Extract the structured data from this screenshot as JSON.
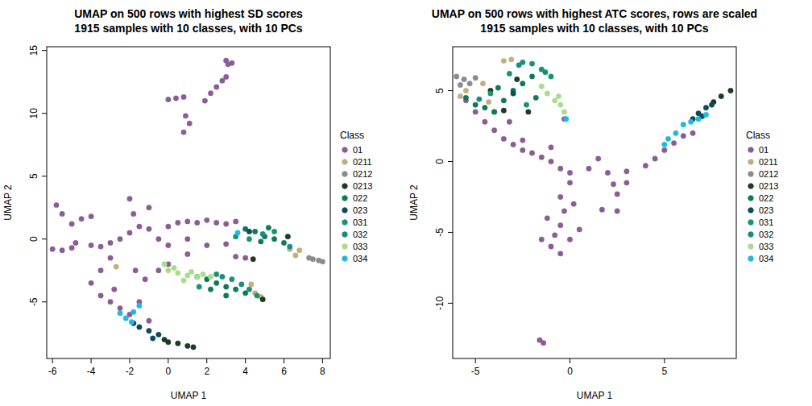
{
  "chart_data": [
    {
      "type": "scatter",
      "title": "UMAP on 500 rows with highest SD scores",
      "subtitle": "1915 samples with 10 classes, with 10 PCs",
      "x_label": "UMAP 1",
      "y_label": "UMAP 2",
      "legend_title": "Class",
      "legend": "right",
      "xlim": [
        -6.3,
        8.4
      ],
      "ylim": [
        -9.5,
        15.3
      ],
      "xticks": [
        -6,
        -4,
        -2,
        0,
        2,
        4,
        6,
        8
      ],
      "yticks": [
        -5,
        0,
        5,
        10,
        15
      ],
      "series": [
        {
          "name": "01",
          "color": "#8b5c97",
          "x": [
            3.0,
            3.3,
            3.1,
            1.9,
            2.2,
            2.5,
            2.8,
            3.0,
            0.0,
            0.4,
            0.8,
            0.8,
            1.1,
            0.9,
            -6.5,
            -6.0,
            -5.5,
            -5.0,
            -5.8,
            -5.5,
            -5.0,
            -4.5,
            -4.0,
            -4.8,
            -4.0,
            -3.5,
            -3.0,
            -2.5,
            -2.0,
            -1.5,
            -1.0,
            -0.5,
            0.0,
            0.5,
            1.0,
            1.5,
            2.0,
            2.5,
            3.0,
            3.5,
            -2.0,
            -1.8,
            -1.0,
            0.0,
            1.0,
            2.0,
            3.0,
            3.5,
            4.0,
            1.0,
            0.0,
            -0.5,
            -3.0,
            -3.5,
            -4.0,
            -3.5,
            -3.0,
            -2.5,
            -2.0,
            -1.5,
            -1.0,
            -2.8,
            -1.7,
            -1.2
          ],
          "values": [
            14.2,
            14.0,
            13.9,
            11.0,
            11.6,
            12.1,
            12.6,
            12.9,
            11.1,
            11.2,
            11.3,
            8.5,
            9.2,
            9.8,
            -0.8,
            -0.8,
            -0.9,
            -0.7,
            2.7,
            2.0,
            1.2,
            1.6,
            1.8,
            -0.3,
            -0.5,
            -0.6,
            -0.3,
            0.0,
            0.5,
            1.0,
            0.8,
            0.0,
            1.0,
            1.3,
            1.4,
            1.3,
            1.5,
            1.3,
            1.2,
            1.4,
            3.2,
            2.0,
            2.5,
            -0.5,
            0.0,
            -0.5,
            -0.4,
            -1.4,
            -1.5,
            -1.2,
            -2.0,
            -2.5,
            -1.5,
            -2.5,
            -3.5,
            -4.5,
            -5.0,
            -5.5,
            -6.0,
            -5.0,
            -6.5,
            -4.0,
            -2.5,
            -3.2
          ]
        },
        {
          "name": "0211",
          "color": "#c2ae7e",
          "x": [
            6.3,
            6.8,
            6.6,
            4.5,
            4.8,
            4.3,
            -2.7
          ],
          "values": [
            -0.8,
            -0.9,
            -1.3,
            -4.3,
            -4.6,
            -3.6,
            -2.2
          ]
        },
        {
          "name": "0212",
          "color": "#8c8c8c",
          "x": [
            7.3,
            7.5,
            7.8,
            8.0
          ],
          "values": [
            -1.5,
            -1.6,
            -1.7,
            -1.8
          ]
        },
        {
          "name": "0213",
          "color": "#1f3a28",
          "x": [
            -0.2,
            0.0,
            0.5,
            1.0,
            1.3,
            4.9,
            4.4,
            6.2
          ],
          "values": [
            -8.0,
            -8.2,
            -8.3,
            -8.5,
            -8.6,
            -4.8,
            -1.6,
            0.2
          ]
        },
        {
          "name": "022",
          "color": "#0e7a58",
          "x": [
            4.0,
            4.5,
            5.0,
            5.5,
            6.0,
            5.2,
            4.8,
            1.5,
            2.0,
            2.5,
            3.0,
            3.5,
            4.0,
            2.2,
            3.0
          ],
          "values": [
            0.8,
            0.6,
            0.2,
            0.0,
            -0.3,
            0.9,
            -0.2,
            -3.0,
            -3.2,
            -3.5,
            -3.8,
            -4.0,
            -4.3,
            -4.0,
            -4.5
          ]
        },
        {
          "name": "023",
          "color": "#0d4a5e",
          "x": [
            -1.8,
            -1.5,
            -1.0,
            -0.5,
            -0.8,
            4.2
          ],
          "values": [
            -6.7,
            -7.0,
            -7.3,
            -7.6,
            -7.9,
            0.6
          ]
        },
        {
          "name": "031",
          "color": "#179470",
          "x": [
            3.5,
            4.2,
            5.5,
            2.5,
            3.3,
            4.2,
            1.6,
            4.6
          ],
          "values": [
            0.2,
            0.0,
            0.6,
            -2.8,
            -3.2,
            -4.0,
            -3.8,
            -4.5
          ]
        },
        {
          "name": "032",
          "color": "#1a8c7c",
          "x": [
            2.8,
            3.8,
            4.9,
            6.3
          ],
          "values": [
            -3.0,
            -3.6,
            0.4,
            -0.6
          ]
        },
        {
          "name": "033",
          "color": "#a9dc8c",
          "x": [
            -0.2,
            0.0,
            0.3,
            0.5,
            0.8,
            1.0,
            1.2,
            1.5,
            1.8,
            2.2
          ],
          "values": [
            -2.0,
            -2.5,
            -2.3,
            -2.7,
            -3.3,
            -2.9,
            -2.6,
            -3.0,
            -2.8,
            -3.0
          ]
        },
        {
          "name": "034",
          "color": "#22b8e2",
          "x": [
            -2.5,
            -2.2,
            -1.9,
            -1.8,
            -1.5,
            3.6
          ],
          "values": [
            -5.9,
            -6.3,
            -6.6,
            -5.8,
            -5.3,
            0.5
          ]
        }
      ]
    },
    {
      "type": "scatter",
      "title": "UMAP on 500 rows with highest ATC scores, rows are scaled",
      "subtitle": "1915 samples with 10 classes, with 10 PCs",
      "x_label": "UMAP 1",
      "y_label": "UMAP 2",
      "legend_title": "Class",
      "legend": "right",
      "xlim": [
        -6.2,
        8.8
      ],
      "ylim": [
        -13.9,
        8.1
      ],
      "xticks": [
        -5,
        0,
        5
      ],
      "yticks": [
        -10,
        -5,
        0,
        5
      ],
      "series": [
        {
          "name": "01",
          "color": "#8b5c97",
          "x": [
            -1.6,
            -1.4,
            -5.5,
            -5.0,
            -4.5,
            -4.0,
            -3.5,
            -3.0,
            -2.5,
            -2.0,
            -1.5,
            -1.0,
            -0.5,
            0.0,
            0.0,
            -0.5,
            -0.3,
            -0.5,
            -0.8,
            -1.0,
            -0.5,
            0.0,
            0.5,
            0.2,
            -1.5,
            -1.2,
            1.0,
            2.0,
            3.0,
            4.0,
            4.5,
            5.0,
            5.5,
            6.0,
            6.5,
            2.3,
            2.5,
            1.7,
            2.5,
            3.0,
            -2.5,
            -1.0,
            -0.3,
            -4.0,
            -3.2,
            1.5
          ],
          "values": [
            -12.6,
            -12.8,
            4.3,
            3.5,
            2.8,
            2.2,
            1.6,
            1.2,
            0.8,
            0.6,
            0.3,
            0.0,
            -0.5,
            -0.8,
            -1.5,
            -2.5,
            -3.5,
            -4.5,
            -5.2,
            -6.0,
            -6.5,
            -5.5,
            -4.8,
            -3.0,
            -5.5,
            -4.0,
            -0.5,
            -0.8,
            -0.7,
            -0.3,
            0.2,
            0.8,
            1.3,
            1.8,
            2.0,
            -1.6,
            -2.3,
            -3.4,
            -3.5,
            -1.5,
            1.5,
            1.0,
            3.0,
            3.5,
            2.8,
            0.2
          ]
        },
        {
          "name": "0211",
          "color": "#c2ae7e",
          "x": [
            -3.5,
            -3.1,
            -5.5,
            -4.6,
            -5.8,
            -4.3
          ],
          "values": [
            7.1,
            7.2,
            5.0,
            5.5,
            4.6,
            4.2
          ]
        },
        {
          "name": "0212",
          "color": "#8c8c8c",
          "x": [
            -6.0,
            -5.8,
            -5.6,
            -5.3,
            -5.0
          ],
          "values": [
            6.0,
            5.4,
            5.8,
            5.5,
            5.9
          ]
        },
        {
          "name": "0213",
          "color": "#1f3a28",
          "x": [
            -4.2,
            -2.8,
            -3.5,
            -2.2,
            7.6,
            8.0,
            8.5
          ],
          "values": [
            5.0,
            5.8,
            3.6,
            3.5,
            4.2,
            4.6,
            5.0
          ]
        },
        {
          "name": "022",
          "color": "#0e7a58",
          "x": [
            -5.5,
            -5.0,
            -4.5,
            -3.5,
            -3.0,
            -2.5,
            -2.0,
            -4.0,
            -3.8,
            -1.8
          ],
          "values": [
            4.5,
            4.0,
            3.8,
            4.3,
            5.0,
            5.5,
            6.0,
            3.5,
            5.2,
            4.5
          ]
        },
        {
          "name": "023",
          "color": "#0d4a5e",
          "x": [
            -3.0,
            6.5,
            6.8,
            7.0,
            7.2,
            7.5
          ],
          "values": [
            4.8,
            3.0,
            3.4,
            3.2,
            3.8,
            4.0
          ]
        },
        {
          "name": "031",
          "color": "#179470",
          "x": [
            -3.2,
            -2.7,
            -2.0,
            -1.5,
            -1.0,
            -4.2,
            -2.3
          ],
          "values": [
            6.2,
            6.8,
            6.9,
            6.5,
            6.0,
            4.8,
            4.0
          ]
        },
        {
          "name": "032",
          "color": "#1a8c7c",
          "x": [
            -2.5,
            -1.3,
            -4.8
          ],
          "values": [
            7.0,
            6.3,
            4.4
          ]
        },
        {
          "name": "033",
          "color": "#a9dc8c",
          "x": [
            -1.5,
            -1.2,
            -0.8,
            -0.6,
            -0.5,
            -0.3
          ],
          "values": [
            5.3,
            4.8,
            4.3,
            4.6,
            4.0,
            3.5
          ]
        },
        {
          "name": "034",
          "color": "#22b8e2",
          "x": [
            -0.2,
            5.0,
            5.2,
            5.6,
            6.0,
            6.4,
            6.8,
            7.2
          ],
          "values": [
            3.0,
            1.2,
            1.6,
            2.0,
            2.6,
            2.8,
            3.0,
            3.3
          ]
        }
      ]
    }
  ]
}
